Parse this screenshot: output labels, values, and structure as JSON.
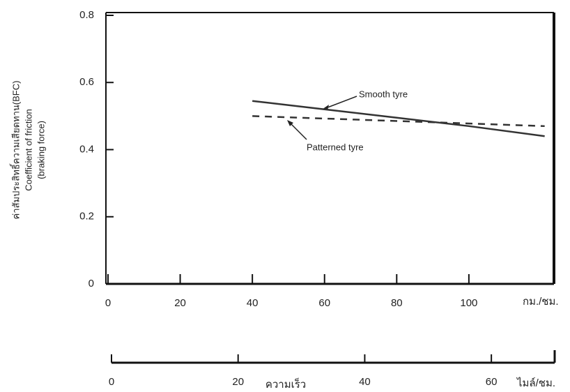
{
  "chart_data": {
    "type": "line",
    "y_label_lines": [
      "ค่าสัมประสิทธิ์ความเสียดทาน(BFC)",
      "Coefficient of friction",
      "(braking force)"
    ],
    "x_unit": "กม./ชม.",
    "x2_unit": "ไมล์/ชม.",
    "x2_label": "ความเร็ว",
    "annotations": [
      "Smooth tyre",
      "Patterned tyre"
    ],
    "series": [
      {
        "name": "Smooth tyre",
        "color": "#333333",
        "dash": false,
        "x": [
          40,
          60,
          80,
          100,
          121
        ],
        "values": [
          0.545,
          0.52,
          0.495,
          0.47,
          0.44
        ]
      },
      {
        "name": "Patterned tyre",
        "color": "#333333",
        "dash": true,
        "x": [
          40,
          121
        ],
        "values": [
          0.5,
          0.47
        ]
      }
    ],
    "xlim": [
      0,
      123
    ],
    "xticks": [
      0,
      20,
      40,
      60,
      80,
      100
    ],
    "ylim": [
      0,
      0.8
    ],
    "yticks": [
      0,
      0.2,
      0.4,
      0.6,
      0.8
    ],
    "x2lim": [
      0,
      70
    ],
    "x2ticks": [
      0,
      20,
      40,
      60
    ]
  }
}
